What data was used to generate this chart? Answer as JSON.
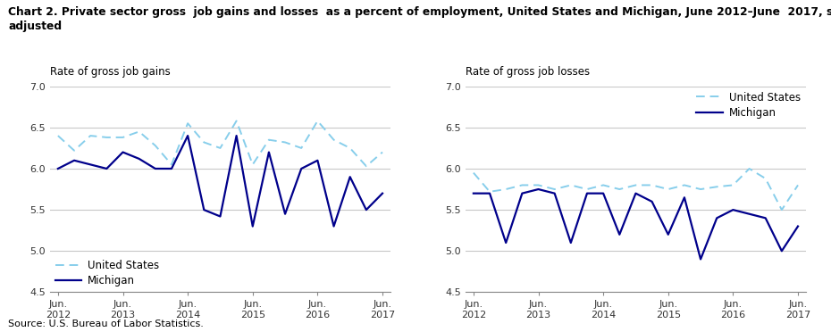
{
  "title_line1": "Chart 2. Private sector gross  job gains and losses  as a percent of employment, United States and Michigan, June 2012–June  2017, seasonally",
  "title_line2": "adjusted",
  "source": "Source: U.S. Bureau of Labor Statistics.",
  "gains_ylabel": "Rate of gross job gains",
  "losses_ylabel": "Rate of gross job losses",
  "x_labels": [
    "Jun.\n2012",
    "Jun.\n2013",
    "Jun.\n2014",
    "Jun.\n2015",
    "Jun.\n2016",
    "Jun.\n2017"
  ],
  "x_positions": [
    0,
    4,
    8,
    12,
    16,
    20
  ],
  "gains_us": [
    6.4,
    6.22,
    6.4,
    6.38,
    6.38,
    6.45,
    6.28,
    6.05,
    6.55,
    6.32,
    6.25,
    6.58,
    6.05,
    6.35,
    6.32,
    6.25,
    6.58,
    6.35,
    6.25,
    6.03,
    6.2
  ],
  "gains_mi": [
    6.0,
    6.1,
    6.05,
    6.0,
    6.2,
    6.12,
    6.0,
    6.0,
    6.4,
    5.5,
    5.42,
    6.4,
    5.3,
    6.2,
    5.45,
    6.0,
    6.1,
    5.3,
    5.9,
    5.5,
    5.7
  ],
  "losses_us": [
    5.95,
    5.72,
    5.75,
    5.8,
    5.8,
    5.75,
    5.8,
    5.75,
    5.8,
    5.75,
    5.8,
    5.8,
    5.75,
    5.8,
    5.75,
    5.78,
    5.8,
    6.0,
    5.88,
    5.5,
    5.8
  ],
  "losses_mi": [
    5.7,
    5.7,
    5.1,
    5.7,
    5.75,
    5.7,
    5.1,
    5.7,
    5.7,
    5.2,
    5.7,
    5.6,
    5.2,
    5.65,
    4.9,
    5.4,
    5.5,
    5.45,
    5.4,
    5.0,
    5.3
  ],
  "us_color": "#87CEEB",
  "mi_color": "#00008B",
  "ylim": [
    4.5,
    7.0
  ],
  "yticks": [
    4.5,
    5.0,
    5.5,
    6.0,
    6.5,
    7.0
  ],
  "grid_color": "#c8c8c8",
  "title_fontsize": 8.8,
  "axis_label_fontsize": 8.5,
  "tick_fontsize": 8,
  "legend_fontsize": 8.5
}
